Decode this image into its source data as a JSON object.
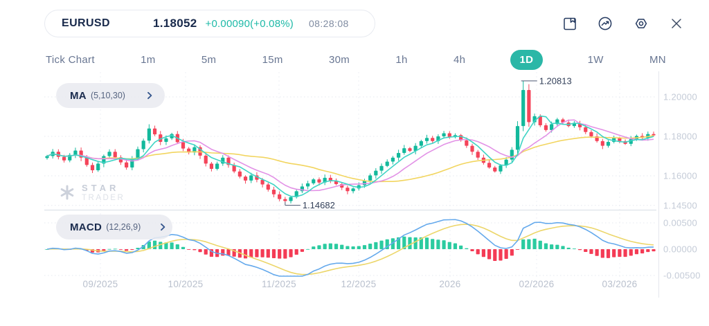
{
  "header": {
    "symbol": "EURUSD",
    "price": "1.18052",
    "change": "+0.00090(+0.08%)",
    "time": "08:28:08",
    "icons": [
      "save-icon",
      "chart-type-icon",
      "settings-icon",
      "close-icon"
    ]
  },
  "timeframes": {
    "items": [
      {
        "label": "Tick Chart",
        "active": false
      },
      {
        "label": "1m",
        "active": false
      },
      {
        "label": "5m",
        "active": false
      },
      {
        "label": "15m",
        "active": false
      },
      {
        "label": "30m",
        "active": false
      },
      {
        "label": "1h",
        "active": false
      },
      {
        "label": "4h",
        "active": false
      },
      {
        "label": "1D",
        "active": true
      },
      {
        "label": "1W",
        "active": false
      },
      {
        "label": "MN",
        "active": false
      }
    ]
  },
  "indicators": {
    "ma": {
      "name": "MA",
      "params": "(5,10,30)"
    },
    "macd": {
      "name": "MACD",
      "params": "(12,26,9)"
    }
  },
  "watermark": {
    "line1": "STAR",
    "line2": "TRADER"
  },
  "colors": {
    "accent_teal": "#2bb7a7",
    "navy": "#24395f",
    "candle_up": "#13b99c",
    "candle_down": "#f4445a",
    "ma5": "#3fd4c5",
    "ma10": "#e291e6",
    "ma30": "#f2d55f",
    "macd_line": "#64a9ec",
    "macd_signal": "#ecd66a",
    "hist_up": "#2bcba0",
    "hist_down": "#f43b55",
    "grid": "#e5e8ef",
    "axis_line": "#e4e7ed",
    "separator": "#d8dde5",
    "price_axis_text": "#c4cbd7",
    "x_axis_text": "#b9c0cd",
    "annotation_text": "#323f58"
  },
  "chart_data": {
    "type": "candlestick+macd",
    "symbol": "EURUSD",
    "timeframe": "1D",
    "price_axis_labels": [
      "1.20000",
      "1.18000",
      "1.16000",
      "1.14500"
    ],
    "price_axis_values": [
      1.2,
      1.18,
      1.16,
      1.145
    ],
    "macd_axis_labels": [
      "0.00500",
      "0.00000",
      "-0.00500"
    ],
    "macd_axis_values": [
      0.005,
      0.0,
      -0.005
    ],
    "x_axis_labels": [
      "09/2025",
      "10/2025",
      "11/2025",
      "12/2025",
      "2026",
      "02/2026",
      "03/2026"
    ],
    "annotations": {
      "high_label": "1.20813",
      "low_label": "1.14682"
    },
    "high_point": {
      "index": 84,
      "value": 1.20813
    },
    "low_point": {
      "index": 42,
      "value": 1.14682
    },
    "first_open": 1.169,
    "closes": [
      1.17,
      1.1722,
      1.1696,
      1.1678,
      1.1706,
      1.1728,
      1.1692,
      1.1655,
      1.1628,
      1.1662,
      1.17,
      1.1722,
      1.1694,
      1.1668,
      1.1642,
      1.1688,
      1.1735,
      1.1778,
      1.184,
      1.181,
      1.1772,
      1.179,
      1.1812,
      1.177,
      1.1738,
      1.1718,
      1.1745,
      1.1702,
      1.1662,
      1.1635,
      1.1662,
      1.1692,
      1.1655,
      1.1622,
      1.1596,
      1.1576,
      1.1602,
      1.158,
      1.1556,
      1.153,
      1.1506,
      1.1482,
      1.1472,
      1.1492,
      1.1522,
      1.1546,
      1.1562,
      1.1582,
      1.1566,
      1.159,
      1.1576,
      1.1558,
      1.154,
      1.1522,
      1.1536,
      1.1552,
      1.1576,
      1.1602,
      1.1626,
      1.165,
      1.1672,
      1.1692,
      1.1716,
      1.174,
      1.1726,
      1.1752,
      1.1776,
      1.1792,
      1.1776,
      1.18,
      1.1816,
      1.1796,
      1.1806,
      1.178,
      1.1752,
      1.1722,
      1.1692,
      1.1666,
      1.1642,
      1.1622,
      1.1652,
      1.1682,
      1.1732,
      1.1852,
      1.2035,
      1.1872,
      1.1902,
      1.1856,
      1.1832,
      1.1862,
      1.1886,
      1.187,
      1.1852,
      1.1866,
      1.1846,
      1.1822,
      1.18,
      1.1776,
      1.1752,
      1.1772,
      1.1792,
      1.1776,
      1.1762,
      1.1786,
      1.1802,
      1.1792,
      1.1812,
      1.18052
    ],
    "ma_periods": [
      5,
      10,
      30
    ],
    "macd_params": [
      12,
      26,
      9
    ],
    "legend_position": "none",
    "grid": true
  }
}
